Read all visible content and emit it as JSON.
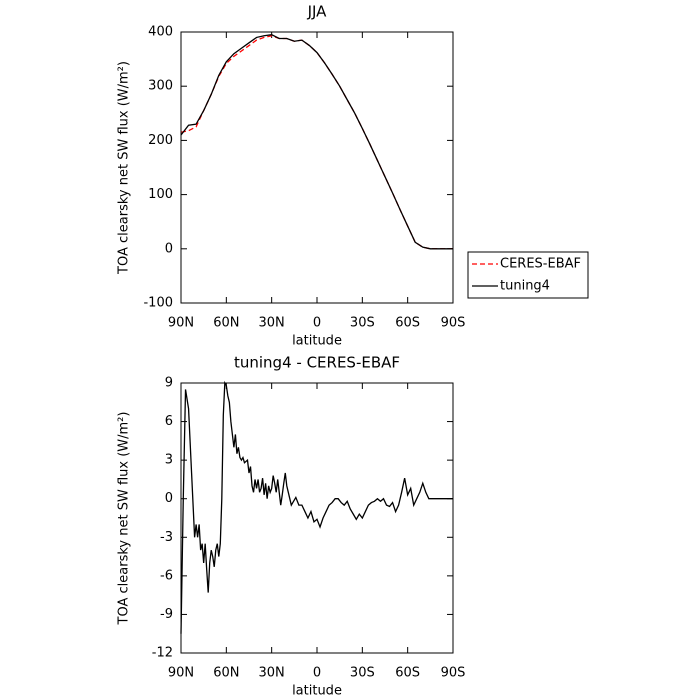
{
  "chart_data": [
    {
      "type": "line",
      "title": "JJA",
      "xlabel": "latitude",
      "ylabel": "TOA clearsky net SW flux (W/m²)",
      "x": [
        90,
        85,
        80,
        75,
        70,
        65,
        60,
        55,
        50,
        45,
        40,
        35,
        30,
        25,
        20,
        15,
        10,
        5,
        0,
        -5,
        -10,
        -15,
        -20,
        -25,
        -30,
        -35,
        -40,
        -45,
        -50,
        -55,
        -60,
        -65,
        -70,
        -75,
        -80,
        -85,
        -90
      ],
      "series": [
        {
          "name": "CERES-EBAF",
          "color": "#ff0000",
          "line_style": "dashed",
          "values": [
            215,
            218,
            225,
            255,
            285,
            318,
            342,
            355,
            365,
            375,
            385,
            390,
            393,
            388,
            388,
            383,
            385,
            375,
            362,
            343,
            322,
            300,
            275,
            250,
            222,
            193,
            163,
            133,
            103,
            72,
            42,
            12,
            3,
            0,
            0,
            0,
            0
          ]
        },
        {
          "name": "tuning4",
          "color": "#000000",
          "line_style": "solid",
          "values": [
            210,
            228,
            230,
            255,
            285,
            320,
            345,
            360,
            370,
            380,
            390,
            393,
            395,
            388,
            388,
            383,
            385,
            375,
            362,
            343,
            322,
            300,
            275,
            250,
            222,
            193,
            163,
            133,
            103,
            72,
            42,
            12,
            3,
            0,
            0,
            0,
            0
          ]
        }
      ],
      "xlim": [
        90,
        -90
      ],
      "xticks": [
        {
          "value": 90,
          "label": "90N"
        },
        {
          "value": 60,
          "label": "60N"
        },
        {
          "value": 30,
          "label": "30N"
        },
        0,
        {
          "value": -30,
          "label": "30S"
        },
        {
          "value": -60,
          "label": "60S"
        },
        {
          "value": -90,
          "label": "90S"
        }
      ],
      "ylim": [
        -100,
        400
      ],
      "yticks": [
        -100,
        0,
        100,
        200,
        300,
        400
      ],
      "legend": "right"
    },
    {
      "type": "line",
      "title": "tuning4 - CERES-EBAF",
      "xlabel": "latitude",
      "ylabel": "TOA clearsky net SW flux (W/m²)",
      "x": [
        90,
        88.5,
        87,
        85,
        83,
        81,
        80,
        79,
        78,
        77,
        76,
        75,
        74,
        73,
        72,
        71,
        70,
        69,
        68,
        67,
        66,
        65,
        64,
        63,
        62,
        61,
        60,
        59,
        58,
        57,
        56,
        55,
        54,
        53,
        52,
        51,
        50,
        49,
        48,
        46,
        45,
        44,
        43,
        42,
        41,
        40,
        39,
        38,
        37,
        36,
        35,
        34,
        33,
        32,
        31,
        30,
        29,
        28,
        27,
        26,
        25,
        24,
        23,
        22,
        21,
        20,
        19,
        18,
        17,
        16,
        14,
        12,
        10,
        8,
        6,
        4,
        2,
        0,
        -2,
        -4,
        -6,
        -8,
        -10,
        -12,
        -14,
        -16,
        -18,
        -20,
        -22,
        -24,
        -26,
        -28,
        -30,
        -32,
        -34,
        -36,
        -38,
        -40,
        -42,
        -44,
        -46,
        -48,
        -50,
        -52,
        -54,
        -56,
        -58,
        -60,
        -62,
        -64,
        -66,
        -68,
        -70,
        -72,
        -74,
        -76,
        -80,
        -90
      ],
      "series": [
        {
          "name": "tuning4 - CERES-EBAF",
          "color": "#000000",
          "line_style": "solid",
          "values": [
            -10.5,
            0,
            8.5,
            7,
            2,
            -3,
            -2,
            -3,
            -2,
            -4,
            -3.5,
            -5,
            -3.5,
            -5.5,
            -7.3,
            -5,
            -4,
            -4.5,
            -5.3,
            -4,
            -3.5,
            -4.5,
            -3.5,
            0,
            6.5,
            9,
            8.8,
            8,
            7.5,
            6,
            5,
            4,
            5,
            3.5,
            4,
            3.2,
            3,
            3.2,
            2.8,
            3,
            2,
            2.5,
            1,
            0.5,
            1.5,
            0.8,
            1.5,
            0.5,
            0.8,
            1.6,
            0.3,
            1.2,
            0,
            1,
            0.5,
            0.8,
            1.8,
            1.2,
            0.5,
            1.5,
            0.5,
            -0.5,
            0.3,
            1.2,
            2,
            1,
            0.5,
            0,
            -0.5,
            -0.3,
            0.1,
            -0.5,
            -0.5,
            -1,
            -1.5,
            -1,
            -1.8,
            -1.6,
            -2.2,
            -1.5,
            -1,
            -0.5,
            -0.3,
            0,
            0,
            -0.3,
            -0.5,
            -0.2,
            -0.8,
            -1.2,
            -1.6,
            -1.2,
            -1.5,
            -1,
            -0.5,
            -0.3,
            -0.2,
            0,
            -0.2,
            0,
            -0.5,
            -0.6,
            -0.3,
            -1,
            -0.5,
            0.5,
            1.6,
            0.3,
            0.8,
            -0.5,
            0,
            0.5,
            1.2,
            0.5,
            0,
            0,
            0,
            0
          ]
        }
      ],
      "xlim": [
        90,
        -90
      ],
      "xticks": [
        {
          "value": 90,
          "label": "90N"
        },
        {
          "value": 60,
          "label": "60N"
        },
        {
          "value": 30,
          "label": "30N"
        },
        0,
        {
          "value": -30,
          "label": "30S"
        },
        {
          "value": -60,
          "label": "60S"
        },
        {
          "value": -90,
          "label": "90S"
        }
      ],
      "ylim": [
        -12,
        9
      ],
      "yticks": [
        -12,
        -9,
        -6,
        -3,
        0,
        3,
        6,
        9
      ]
    }
  ]
}
